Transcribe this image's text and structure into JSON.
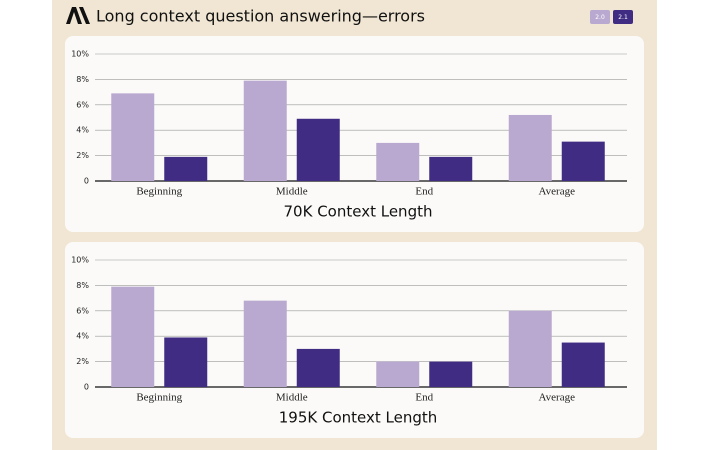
{
  "title": "Long context question answering—errors",
  "chart_data": [
    {
      "type": "bar",
      "title": "70K Context Length",
      "categories": [
        "Beginning",
        "Middle",
        "End",
        "Average"
      ],
      "series": [
        {
          "name": "2.0",
          "color": "#b9a9d0",
          "values": [
            6.9,
            7.9,
            3.0,
            5.2
          ]
        },
        {
          "name": "2.1",
          "color": "#402d83",
          "values": [
            1.9,
            4.9,
            1.9,
            3.1
          ]
        }
      ],
      "ylim": [
        0,
        10
      ],
      "yticks": [
        {
          "value": 0,
          "label": "0"
        },
        {
          "value": 2,
          "label": "2%"
        },
        {
          "value": 4,
          "label": "4%"
        },
        {
          "value": 6,
          "label": "6%"
        },
        {
          "value": 8,
          "label": "8%"
        },
        {
          "value": 10,
          "label": "10%"
        }
      ],
      "grid": true
    },
    {
      "type": "bar",
      "title": "195K Context Length",
      "categories": [
        "Beginning",
        "Middle",
        "End",
        "Average"
      ],
      "series": [
        {
          "name": "2.0",
          "color": "#b9a9d0",
          "values": [
            7.9,
            6.8,
            2.0,
            6.0
          ]
        },
        {
          "name": "2.1",
          "color": "#402d83",
          "values": [
            3.9,
            3.0,
            2.0,
            3.5
          ]
        }
      ],
      "ylim": [
        0,
        10
      ],
      "yticks": [
        {
          "value": 0,
          "label": "0"
        },
        {
          "value": 2,
          "label": "2%"
        },
        {
          "value": 4,
          "label": "4%"
        },
        {
          "value": 6,
          "label": "6%"
        },
        {
          "value": 8,
          "label": "8%"
        },
        {
          "value": 10,
          "label": "10%"
        }
      ],
      "grid": true
    }
  ]
}
